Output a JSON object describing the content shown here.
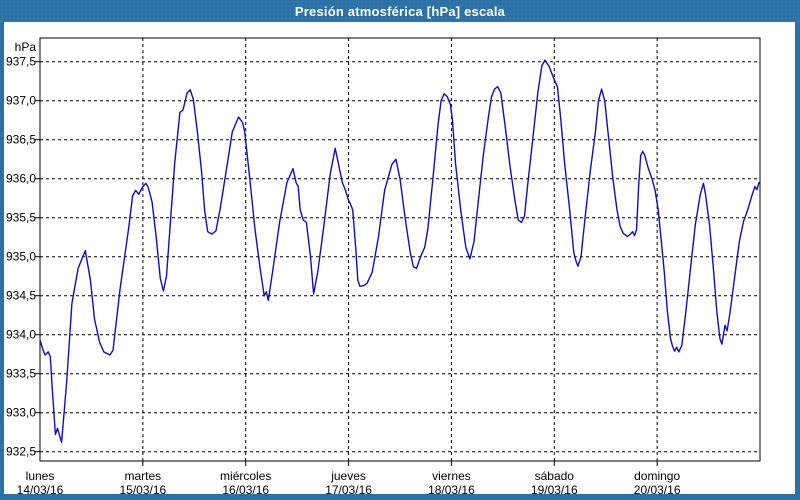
{
  "window": {
    "title": "Presión atmosférica [hPa] escala"
  },
  "colors": {
    "frame": "#2B71A6",
    "title_text": "#FFFFFF",
    "background": "#FFFFFF",
    "plot_border": "#000000",
    "grid": "#000000",
    "label_text": "#000000",
    "line": "#0D0DC8"
  },
  "chart_data": {
    "type": "line",
    "title": "Presión atmosférica [hPa] escala",
    "xlabel": "",
    "ylabel": "hPa",
    "grid": "dashed",
    "legend": "none",
    "x_range_days": 7,
    "y_axis": {
      "unit_label": "hPa",
      "min": 932.5,
      "max": 937.5,
      "step": 0.5,
      "tick_labels": [
        "937,5",
        "937,0",
        "936,5",
        "936,0",
        "935,5",
        "935,0",
        "934,5",
        "934,0",
        "933,5",
        "933,0",
        "932,5"
      ]
    },
    "x_axis": {
      "days": [
        {
          "name": "lunes",
          "date": "14/03/16"
        },
        {
          "name": "martes",
          "date": "15/03/16"
        },
        {
          "name": "miércoles",
          "date": "16/03/16"
        },
        {
          "name": "jueves",
          "date": "17/03/16"
        },
        {
          "name": "viernes",
          "date": "18/03/16"
        },
        {
          "name": "sábado",
          "date": "19/03/16"
        },
        {
          "name": "domingo",
          "date": "20/03/16"
        }
      ]
    },
    "series": [
      {
        "name": "Presión atmosférica [hPa]",
        "color": "#0D0DC8",
        "points_format": "[days_since_mon_14_03_16_00h, hPa]",
        "points": [
          [
            0.0,
            933.93
          ],
          [
            0.03,
            933.8
          ],
          [
            0.05,
            933.74
          ],
          [
            0.08,
            933.78
          ],
          [
            0.1,
            933.72
          ],
          [
            0.12,
            933.3
          ],
          [
            0.15,
            932.72
          ],
          [
            0.17,
            932.8
          ],
          [
            0.21,
            932.62
          ],
          [
            0.26,
            933.4
          ],
          [
            0.31,
            934.4
          ],
          [
            0.37,
            934.85
          ],
          [
            0.44,
            935.08
          ],
          [
            0.49,
            934.7
          ],
          [
            0.53,
            934.2
          ],
          [
            0.58,
            933.9
          ],
          [
            0.62,
            933.78
          ],
          [
            0.68,
            933.74
          ],
          [
            0.71,
            933.8
          ],
          [
            0.78,
            934.6
          ],
          [
            0.86,
            935.35
          ],
          [
            0.9,
            935.78
          ],
          [
            0.93,
            935.85
          ],
          [
            0.96,
            935.8
          ],
          [
            1.0,
            935.9
          ],
          [
            1.03,
            935.94
          ],
          [
            1.05,
            935.9
          ],
          [
            1.09,
            935.7
          ],
          [
            1.13,
            935.25
          ],
          [
            1.17,
            934.72
          ],
          [
            1.2,
            934.56
          ],
          [
            1.23,
            934.75
          ],
          [
            1.26,
            935.3
          ],
          [
            1.31,
            936.2
          ],
          [
            1.36,
            936.85
          ],
          [
            1.39,
            936.88
          ],
          [
            1.43,
            937.1
          ],
          [
            1.46,
            937.14
          ],
          [
            1.49,
            937.02
          ],
          [
            1.53,
            936.6
          ],
          [
            1.57,
            936.1
          ],
          [
            1.6,
            935.6
          ],
          [
            1.63,
            935.32
          ],
          [
            1.67,
            935.29
          ],
          [
            1.71,
            935.33
          ],
          [
            1.75,
            935.6
          ],
          [
            1.81,
            936.1
          ],
          [
            1.87,
            936.6
          ],
          [
            1.93,
            936.79
          ],
          [
            1.97,
            936.72
          ],
          [
            1.99,
            936.6
          ],
          [
            2.04,
            936.0
          ],
          [
            2.09,
            935.35
          ],
          [
            2.14,
            934.85
          ],
          [
            2.18,
            934.5
          ],
          [
            2.2,
            934.55
          ],
          [
            2.22,
            934.44
          ],
          [
            2.26,
            934.8
          ],
          [
            2.33,
            935.45
          ],
          [
            2.4,
            935.95
          ],
          [
            2.46,
            936.13
          ],
          [
            2.49,
            935.95
          ],
          [
            2.51,
            935.9
          ],
          [
            2.53,
            935.6
          ],
          [
            2.56,
            935.47
          ],
          [
            2.59,
            935.44
          ],
          [
            2.63,
            935.0
          ],
          [
            2.66,
            934.52
          ],
          [
            2.7,
            934.8
          ],
          [
            2.76,
            935.4
          ],
          [
            2.82,
            936.05
          ],
          [
            2.87,
            936.39
          ],
          [
            2.9,
            936.2
          ],
          [
            2.94,
            935.95
          ],
          [
            2.97,
            935.85
          ],
          [
            3.0,
            935.72
          ],
          [
            3.02,
            935.67
          ],
          [
            3.04,
            935.6
          ],
          [
            3.07,
            935.1
          ],
          [
            3.09,
            934.7
          ],
          [
            3.11,
            934.62
          ],
          [
            3.15,
            934.63
          ],
          [
            3.18,
            934.66
          ],
          [
            3.23,
            934.8
          ],
          [
            3.29,
            935.25
          ],
          [
            3.35,
            935.85
          ],
          [
            3.42,
            936.18
          ],
          [
            3.46,
            936.25
          ],
          [
            3.5,
            936.0
          ],
          [
            3.55,
            935.5
          ],
          [
            3.6,
            935.05
          ],
          [
            3.63,
            934.87
          ],
          [
            3.66,
            934.85
          ],
          [
            3.7,
            935.0
          ],
          [
            3.74,
            935.12
          ],
          [
            3.77,
            935.35
          ],
          [
            3.82,
            936.0
          ],
          [
            3.87,
            936.7
          ],
          [
            3.9,
            937.0
          ],
          [
            3.93,
            937.09
          ],
          [
            3.96,
            937.05
          ],
          [
            3.99,
            936.95
          ],
          [
            4.01,
            936.75
          ],
          [
            4.04,
            936.2
          ],
          [
            4.09,
            935.6
          ],
          [
            4.14,
            935.12
          ],
          [
            4.18,
            934.97
          ],
          [
            4.22,
            935.2
          ],
          [
            4.26,
            935.7
          ],
          [
            4.31,
            936.3
          ],
          [
            4.36,
            936.8
          ],
          [
            4.39,
            937.05
          ],
          [
            4.42,
            937.15
          ],
          [
            4.45,
            937.18
          ],
          [
            4.48,
            937.1
          ],
          [
            4.52,
            936.7
          ],
          [
            4.57,
            936.15
          ],
          [
            4.62,
            935.7
          ],
          [
            4.65,
            935.47
          ],
          [
            4.68,
            935.44
          ],
          [
            4.71,
            935.52
          ],
          [
            4.74,
            935.9
          ],
          [
            4.79,
            936.5
          ],
          [
            4.84,
            937.1
          ],
          [
            4.88,
            937.45
          ],
          [
            4.91,
            937.52
          ],
          [
            4.95,
            937.44
          ],
          [
            4.99,
            937.3
          ],
          [
            5.03,
            937.18
          ],
          [
            5.06,
            936.8
          ],
          [
            5.1,
            936.2
          ],
          [
            5.15,
            935.6
          ],
          [
            5.19,
            935.05
          ],
          [
            5.21,
            934.95
          ],
          [
            5.23,
            934.88
          ],
          [
            5.26,
            935.0
          ],
          [
            5.3,
            935.5
          ],
          [
            5.35,
            936.1
          ],
          [
            5.4,
            936.6
          ],
          [
            5.43,
            937.0
          ],
          [
            5.46,
            937.15
          ],
          [
            5.49,
            937.0
          ],
          [
            5.53,
            936.5
          ],
          [
            5.57,
            936.0
          ],
          [
            5.61,
            935.6
          ],
          [
            5.64,
            935.39
          ],
          [
            5.67,
            935.3
          ],
          [
            5.71,
            935.26
          ],
          [
            5.74,
            935.29
          ],
          [
            5.76,
            935.32
          ],
          [
            5.78,
            935.27
          ],
          [
            5.8,
            935.35
          ],
          [
            5.82,
            935.9
          ],
          [
            5.84,
            936.3
          ],
          [
            5.86,
            936.35
          ],
          [
            5.88,
            936.3
          ],
          [
            5.91,
            936.15
          ],
          [
            5.95,
            936.0
          ],
          [
            5.98,
            935.85
          ],
          [
            6.01,
            935.6
          ],
          [
            6.04,
            935.2
          ],
          [
            6.07,
            934.8
          ],
          [
            6.1,
            934.3
          ],
          [
            6.13,
            933.95
          ],
          [
            6.15,
            933.85
          ],
          [
            6.17,
            933.79
          ],
          [
            6.19,
            933.84
          ],
          [
            6.21,
            933.78
          ],
          [
            6.24,
            933.86
          ],
          [
            6.28,
            934.3
          ],
          [
            6.32,
            934.8
          ],
          [
            6.37,
            935.4
          ],
          [
            6.42,
            935.8
          ],
          [
            6.45,
            935.94
          ],
          [
            6.47,
            935.8
          ],
          [
            6.51,
            935.4
          ],
          [
            6.55,
            934.8
          ],
          [
            6.58,
            934.3
          ],
          [
            6.61,
            933.95
          ],
          [
            6.63,
            933.88
          ],
          [
            6.66,
            934.12
          ],
          [
            6.68,
            934.05
          ],
          [
            6.71,
            934.3
          ],
          [
            6.76,
            934.8
          ],
          [
            6.8,
            935.2
          ],
          [
            6.84,
            935.45
          ],
          [
            6.88,
            935.6
          ],
          [
            6.92,
            935.78
          ],
          [
            6.95,
            935.9
          ],
          [
            6.97,
            935.86
          ],
          [
            6.99,
            935.95
          ]
        ]
      }
    ]
  }
}
